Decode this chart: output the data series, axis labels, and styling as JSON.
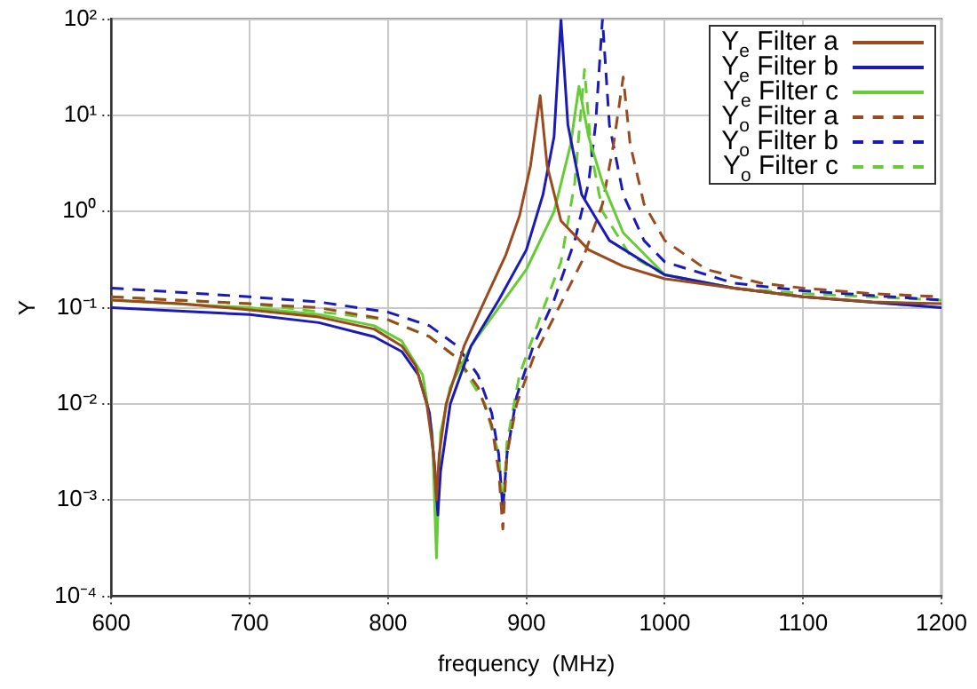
{
  "chart_data": {
    "type": "line",
    "xlabel": "frequency  (MHz)",
    "ylabel": "Y",
    "log": "y",
    "grid": true,
    "legend": "top right",
    "marker": "none",
    "xlim": [
      600,
      1200
    ],
    "xticks": [
      600,
      700,
      800,
      900,
      1000,
      1100,
      1200
    ],
    "ylim": [
      0.0001,
      100
    ],
    "yticks": [
      {
        "value": 0.0001,
        "label": "10⁻⁴"
      },
      {
        "value": 0.001,
        "label": "10⁻³"
      },
      {
        "value": 0.01,
        "label": "10⁻²"
      },
      {
        "value": 0.1,
        "label": "10⁻¹"
      },
      {
        "value": 1,
        "label": "10⁰"
      },
      {
        "value": 10,
        "label": "10¹"
      },
      {
        "value": 100,
        "label": "10²"
      }
    ],
    "series": [
      {
        "name": "Y$_{e}$ Filter a",
        "color": "#9a4a1c",
        "line_style": "solid",
        "x": [
          600,
          650,
          700,
          750,
          790,
          810,
          820,
          828,
          833,
          835,
          837,
          842,
          855,
          870,
          885,
          895,
          903,
          910,
          915,
          925,
          945,
          970,
          1000,
          1050,
          1100,
          1150,
          1200
        ],
        "values": [
          0.12,
          0.11,
          0.095,
          0.08,
          0.06,
          0.04,
          0.025,
          0.01,
          0.003,
          0.001,
          0.003,
          0.01,
          0.04,
          0.12,
          0.35,
          0.9,
          3,
          16,
          3,
          0.8,
          0.4,
          0.27,
          0.2,
          0.16,
          0.13,
          0.115,
          0.11
        ]
      },
      {
        "name": "Y$_{e}$ Filter b",
        "color": "#1a1ab8",
        "line_style": "solid",
        "x": [
          600,
          700,
          750,
          790,
          810,
          822,
          830,
          834,
          836,
          838,
          845,
          860,
          880,
          900,
          912,
          920,
          925,
          930,
          940,
          960,
          1000,
          1050,
          1100,
          1200
        ],
        "values": [
          0.1,
          0.085,
          0.07,
          0.05,
          0.035,
          0.02,
          0.008,
          0.002,
          0.0007,
          0.002,
          0.01,
          0.04,
          0.12,
          0.4,
          1.5,
          6,
          100,
          8,
          1.5,
          0.5,
          0.22,
          0.16,
          0.13,
          0.1
        ]
      },
      {
        "name": "Y$_{e}$ Filter c",
        "color": "#66cc33",
        "line_style": "solid",
        "x": [
          600,
          700,
          750,
          790,
          810,
          825,
          832,
          835,
          838,
          845,
          860,
          880,
          900,
          920,
          932,
          938,
          945,
          955,
          970,
          1000,
          1050,
          1100,
          1200
        ],
        "values": [
          0.12,
          0.1,
          0.085,
          0.065,
          0.045,
          0.02,
          0.005,
          0.00025,
          0.005,
          0.015,
          0.04,
          0.1,
          0.25,
          1,
          5,
          20,
          6,
          2,
          0.6,
          0.22,
          0.16,
          0.13,
          0.1
        ]
      },
      {
        "name": "Y$_{o}$ Filter a",
        "color": "#9a4a1c",
        "line_style": "dashed",
        "x": [
          600,
          700,
          750,
          800,
          830,
          850,
          865,
          875,
          880,
          883,
          886,
          893,
          905,
          920,
          940,
          955,
          963,
          970,
          975,
          985,
          1000,
          1030,
          1070,
          1100,
          1150,
          1200
        ],
        "values": [
          0.13,
          0.11,
          0.1,
          0.075,
          0.05,
          0.03,
          0.015,
          0.006,
          0.002,
          0.0005,
          0.003,
          0.01,
          0.03,
          0.08,
          0.3,
          1.2,
          5,
          25,
          5,
          1.2,
          0.5,
          0.25,
          0.18,
          0.16,
          0.14,
          0.13
        ]
      },
      {
        "name": "Y$_{o}$ Filter b",
        "color": "#1a1ab8",
        "line_style": "dashed",
        "x": [
          600,
          700,
          750,
          800,
          830,
          850,
          865,
          875,
          880,
          883,
          886,
          893,
          905,
          920,
          935,
          945,
          950,
          955,
          960,
          970,
          985,
          1000,
          1050,
          1100,
          1200
        ],
        "values": [
          0.16,
          0.13,
          0.115,
          0.09,
          0.065,
          0.04,
          0.02,
          0.008,
          0.003,
          0.0008,
          0.003,
          0.012,
          0.04,
          0.12,
          0.5,
          2,
          8,
          100,
          8,
          1.5,
          0.5,
          0.3,
          0.18,
          0.15,
          0.12
        ]
      },
      {
        "name": "Y$_{o}$ Filter c",
        "color": "#66cc33",
        "line_style": "dashed",
        "x": [
          600,
          700,
          800,
          830,
          850,
          870,
          880,
          883,
          886,
          895,
          910,
          925,
          935,
          942,
          947,
          955,
          975,
          1000,
          1050,
          1100,
          1200
        ],
        "values": [
          0.13,
          0.11,
          0.075,
          0.05,
          0.03,
          0.01,
          0.003,
          0.0008,
          0.004,
          0.02,
          0.08,
          0.3,
          2,
          30,
          4,
          1,
          0.35,
          0.22,
          0.16,
          0.14,
          0.12
        ]
      }
    ]
  }
}
